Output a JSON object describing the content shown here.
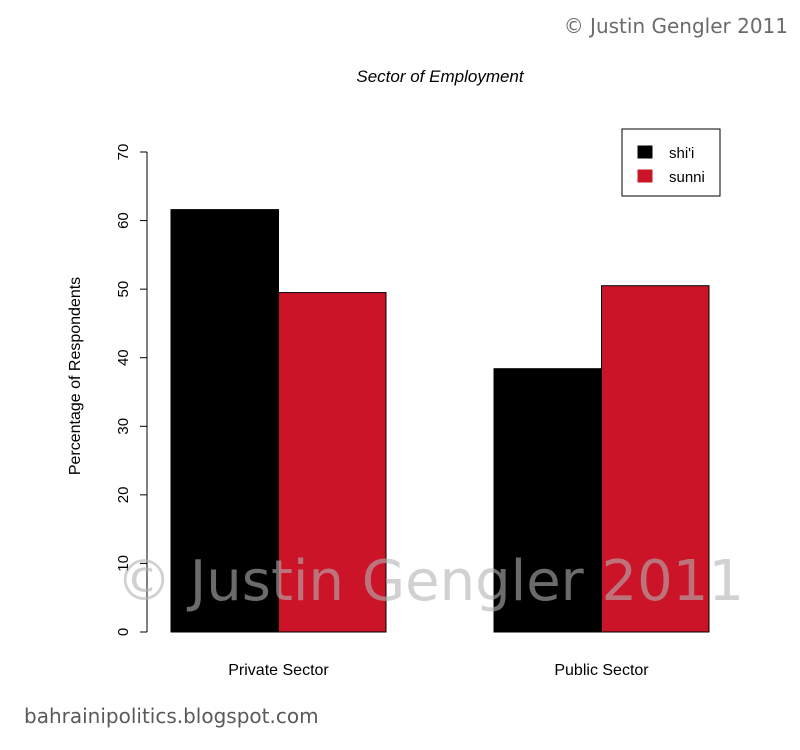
{
  "page": {
    "copyright_top": "© Justin Gengler 2011",
    "watermark": "© Justin Gengler 2011",
    "blog_url": "bahrainipolitics.blogspot.com"
  },
  "chart_data": {
    "type": "bar",
    "title": "Sector of Employment",
    "xlabel": "",
    "ylabel": "Percentage of Respondents",
    "categories": [
      "Private Sector",
      "Public Sector"
    ],
    "series": [
      {
        "name": "shi'i",
        "color": "#000000",
        "values": [
          61.6,
          38.4
        ]
      },
      {
        "name": "sunni",
        "color": "#cc1428",
        "values": [
          49.5,
          50.5
        ]
      }
    ],
    "ylim": [
      0,
      70
    ],
    "yticks": [
      0,
      10,
      20,
      30,
      40,
      50,
      60,
      70
    ],
    "legend_position": "top-right",
    "grid": false
  }
}
